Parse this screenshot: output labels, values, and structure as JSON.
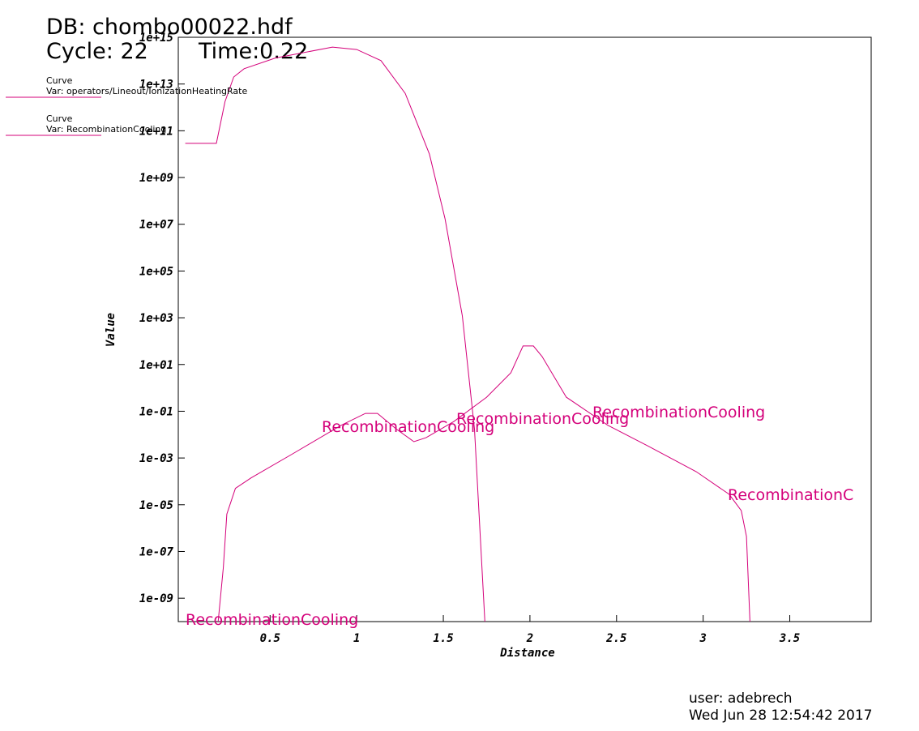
{
  "chart_data": {
    "type": "line",
    "title": "DB: chombo00022.hdf",
    "cycle": "Cycle: 22",
    "time": "Time:0.22",
    "x_label": "Distance",
    "y_label": "Value",
    "user": "user: adebrech",
    "date": "Wed Jun 28 12:54:42 2017",
    "log_y": true,
    "xlim": [
      -0.03,
      3.97
    ],
    "xticks": [
      0.5,
      1.0,
      1.5,
      2.0,
      2.5,
      3.0,
      3.5
    ],
    "ylim": [
      1e-10,
      1000000000000000.0
    ],
    "yticks": [
      {
        "value": 1000000000000000.0,
        "label": "1e+15"
      },
      {
        "value": 10000000000000.0,
        "label": "1e+13"
      },
      {
        "value": 100000000000.0,
        "label": "1e+11"
      },
      {
        "value": 1000000000.0,
        "label": "1e+09"
      },
      {
        "value": 10000000.0,
        "label": "1e+07"
      },
      {
        "value": 100000.0,
        "label": "1e+05"
      },
      {
        "value": 1000.0,
        "label": "1e+03"
      },
      {
        "value": 10,
        "label": "1e+01"
      },
      {
        "value": 0.1,
        "label": "1e-01"
      },
      {
        "value": 0.001,
        "label": "1e-03"
      },
      {
        "value": 1e-05,
        "label": "1e-05"
      },
      {
        "value": 1e-07,
        "label": "1e-07"
      },
      {
        "value": 1e-09,
        "label": "1e-09"
      }
    ],
    "series": [
      {
        "label": "Curve",
        "name": "Var: operators/Lineout/IonizationHeatingRate",
        "color": "#d4007a",
        "x": [
          0.01,
          0.19,
          0.24,
          0.29,
          0.35,
          0.53,
          0.86,
          1.0,
          1.14,
          1.28,
          1.42,
          1.51,
          1.61,
          1.68,
          1.74
        ],
        "values": [
          29000000000.0,
          29000000000.0,
          1800000000000.0,
          20000000000000.0,
          45000000000000.0,
          130000000000000.0,
          380000000000000.0,
          300000000000000.0,
          100000000000000.0,
          4000000000000.0,
          10000000000.0,
          17000000.0,
          1200.0,
          0.017,
          1e-10
        ]
      },
      {
        "label": "Curve",
        "name": "Var: RecombinationCooling",
        "color": "#d4007a",
        "x": [
          0.2,
          0.23,
          0.25,
          0.3,
          0.39,
          0.63,
          0.91,
          1.05,
          1.12,
          1.23,
          1.33,
          1.4,
          1.56,
          1.75,
          1.89,
          1.96,
          2.02,
          2.07,
          2.21,
          2.45,
          2.68,
          2.96,
          3.15,
          3.22,
          3.25,
          3.27
        ],
        "values": [
          1e-10,
          2.1e-08,
          4e-06,
          5e-05,
          0.00014,
          0.0015,
          0.025,
          0.081,
          0.081,
          0.017,
          0.005,
          0.0074,
          0.036,
          0.4,
          4.4,
          62,
          62,
          22,
          0.4,
          0.025,
          0.0033,
          0.00026,
          2.8e-05,
          5.6e-06,
          4.4e-07,
          1e-10
        ]
      }
    ],
    "annotations": [
      "RecombinationCooling",
      "RecombinationCooling",
      "RecombinationCooling",
      "RecombinationC",
      "RecombinationCooling"
    ]
  }
}
